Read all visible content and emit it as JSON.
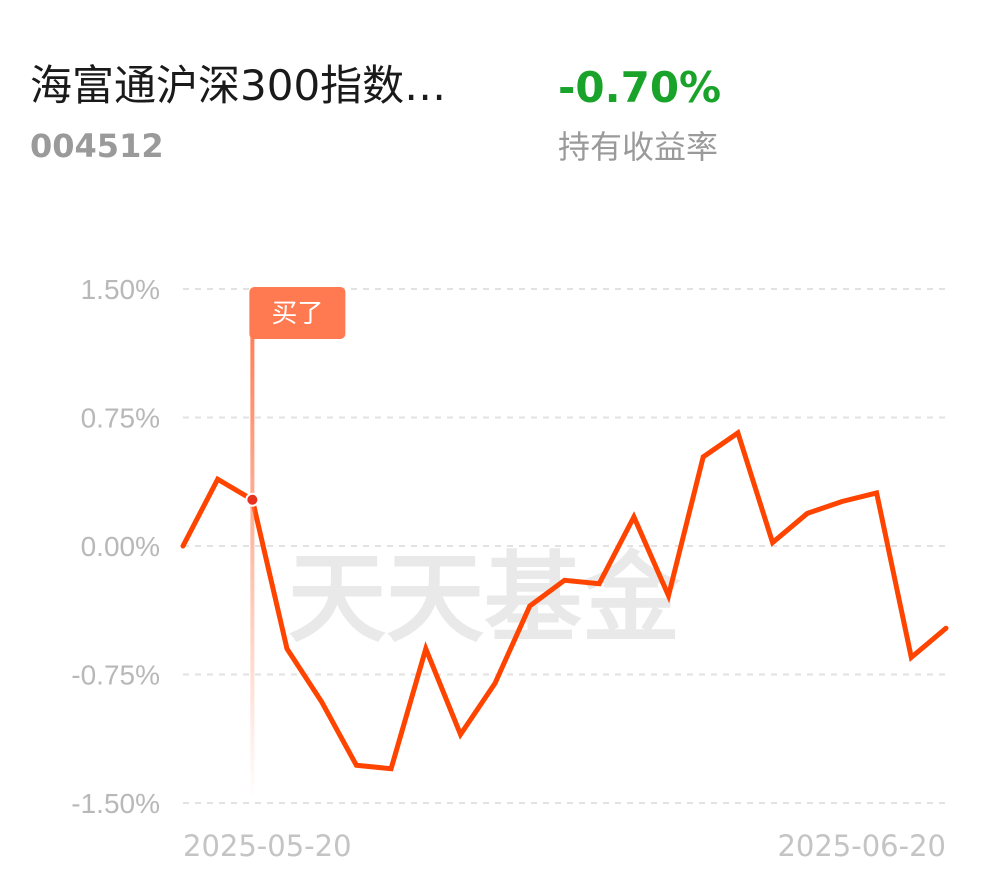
{
  "fund": {
    "name": "海富通沪深300指数…",
    "code": "004512",
    "return_value": "-0.70%",
    "return_label": "持有收益率",
    "return_color": "#1aa32a"
  },
  "watermark": "天天基金",
  "chart_data": {
    "type": "line",
    "ylim": [
      -1.5,
      1.5
    ],
    "yticks": [
      1.5,
      0.75,
      0.0,
      -0.75,
      -1.5
    ],
    "ytick_labels": [
      "1.50%",
      "0.75%",
      "0.00%",
      "-0.75%",
      "-1.50%"
    ],
    "xtick_labels": [
      "2025-05-20",
      "2025-06-20"
    ],
    "grid": true,
    "line_color": "#ff4400",
    "values": [
      0.0,
      0.39,
      0.27,
      -0.6,
      -0.91,
      -1.28,
      -1.3,
      -0.6,
      -1.1,
      -0.8,
      -0.35,
      -0.2,
      -0.22,
      0.17,
      -0.29,
      0.52,
      0.66,
      0.02,
      0.19,
      0.26,
      0.31,
      -0.65,
      -0.48
    ],
    "buy_marker": {
      "label": "买了",
      "index": 2,
      "value": 0.27,
      "color": "#ff7a50"
    }
  }
}
